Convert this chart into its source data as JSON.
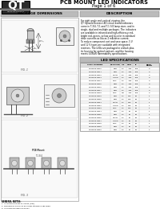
{
  "bg_color": "#ffffff",
  "logo_text": "QT",
  "logo_sub": "OPTOELECTRONICS",
  "header_title": "PCB MOUNT LED INDICATORS",
  "header_subtitle": "Page 1 of 6",
  "section_left": "PACKAGE DIMENSIONS",
  "section_right": "DESCRIPTION",
  "description_text": "For right angle and vertical viewing, the\nQT Optoelectronics LED circuit board indicators\ncome in T-3/4, T-1 and T-1 3/4 lamp sizes, and in\nsingle, dual and multiple packages. The indicators\nare available in infrared and high-efficiency red,\nbright red, green, yellow and bi-color in standard\ndrive currents as low as 2 mA drive current.\nTo reduce component cost and save space, 5 V\nand 12 V types are available with integrated\nresistors. The LEDs are packaged in a black plas-\ntic housing for optical contrast, and the housing\nmeets UL94V0 flammability specifications.",
  "table_header": "LED SPECIFICATIONS",
  "notes_title": "GENERAL NOTES:",
  "notes": [
    "1. All dimensions are in inches (mm).",
    "2. Tolerance is ±0.01 on all unless otherwise specified.",
    "3. All electrical specs at 20 mA.",
    "4. QT Optoelectronics reserves the right to make",
    "   changes without notice."
  ],
  "col_headers": [
    "PART NUMBER",
    "PACKAGE",
    "VIF",
    "MCD",
    "IF",
    "BULK\nPRICE"
  ],
  "table_data": [
    [
      "MV34509.MP10",
      "RED",
      "2.1",
      ".025",
      ".025",
      "3"
    ],
    [
      "MV34509.MP11",
      "RED",
      "2.1",
      ".025",
      ".025",
      "3"
    ],
    [
      "MV34509.MP12",
      "ORAN",
      "2.1",
      ".025",
      ".025",
      "3"
    ],
    [
      "MV34509.MP13",
      "YELW",
      "2.1",
      ".025",
      ".025",
      "3"
    ],
    [
      "MV34509.MP14",
      "GRN",
      "2.1",
      ".025",
      ".025",
      "3"
    ],
    [
      "MV34509.MP15",
      "RED",
      "2.1",
      ".025",
      ".025",
      "3"
    ],
    [
      "MV34509.MP16",
      "RED",
      "2.1",
      ".025",
      ".025",
      "3"
    ],
    [
      "MV34509.MP17",
      "RED",
      "2.1",
      ".025",
      ".025",
      "3"
    ],
    [
      "MV34509.MP18",
      "GRN",
      "0.8",
      ".025",
      ".025",
      "3"
    ],
    [
      "MV34509.MP19",
      "RED",
      "2.1",
      "125",
      "20",
      "1"
    ],
    [
      "MV34509.MP20",
      "RED",
      "2.1",
      "125",
      "20",
      "1"
    ],
    [
      "MV34509.MP21",
      "ORAN",
      "2.1",
      "125",
      "20",
      "1"
    ],
    [
      "MV34509.MP22",
      "YELW",
      "2.1",
      "125",
      "20",
      "1"
    ],
    [
      "MV34509.MP23",
      "GRN",
      "2.1",
      "125",
      "20",
      "1"
    ],
    [
      "MV34509.MP24",
      "RED",
      "2.1",
      "10",
      "20",
      "1"
    ],
    [
      "MV34509.MP25",
      "RED",
      "2.1",
      "10",
      "20",
      "1"
    ],
    [
      "MV34509.MP26",
      "ORAN",
      "2.1",
      "10",
      "20",
      "1"
    ],
    [
      "MV34509.MP27",
      "YELW",
      "2.1",
      "10",
      "20",
      "1"
    ],
    [
      "MV34509.MP28",
      "GRN",
      "2.1",
      "10",
      "20",
      "1"
    ],
    [
      "MV34509.MP29",
      "RED",
      "2.1",
      "10",
      "20",
      "1"
    ],
    [
      "MV34509.MP30",
      "RED",
      "2.1",
      "10",
      "20",
      "1"
    ]
  ],
  "logo_bg": "#2a2a2a",
  "logo_fg": "#ffffff",
  "header_bar_color": "#555555",
  "section_hdr_bg": "#bbbbbb",
  "table_hdr_bg": "#bbbbbb",
  "panel_border": "#888888",
  "divider_thick": "#333333"
}
